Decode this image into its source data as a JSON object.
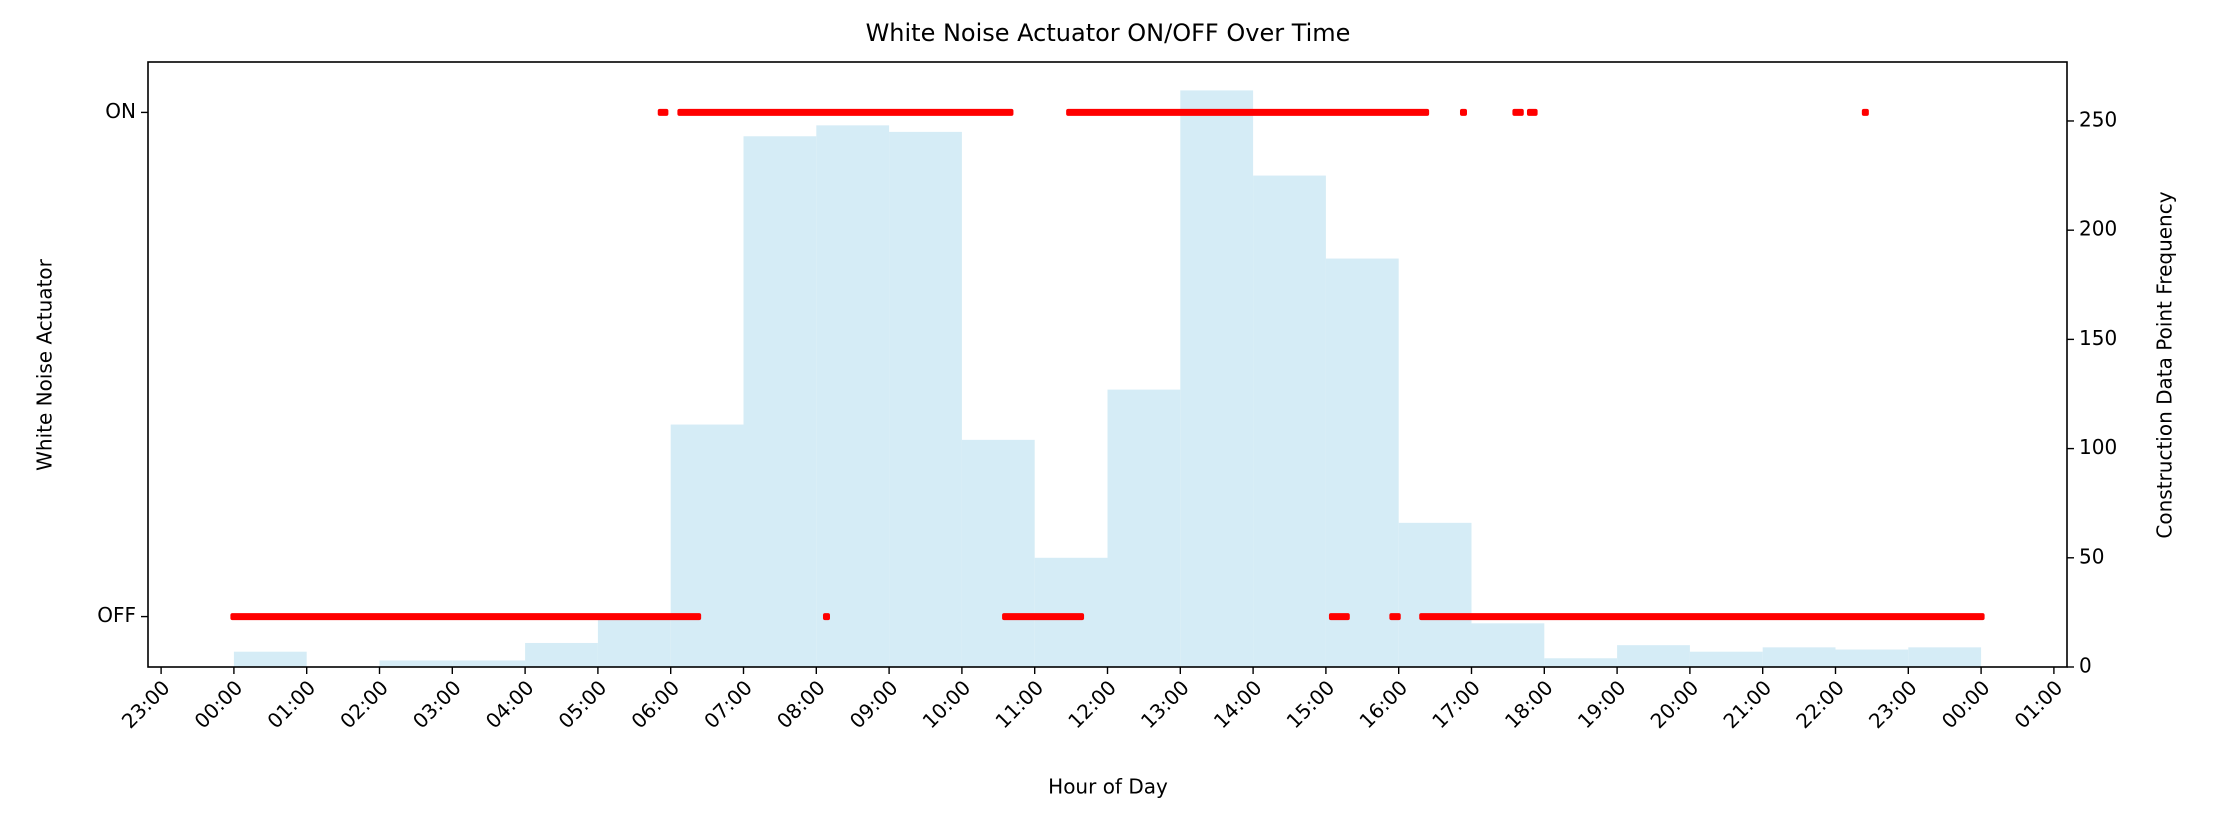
{
  "chart_data": [
    {
      "type": "histogram",
      "axis": "y2",
      "color": "#d5ecf6",
      "bins": [
        0,
        1,
        2,
        3,
        4,
        5,
        6,
        7,
        8,
        9,
        10,
        11,
        12,
        13,
        14,
        15,
        16,
        17,
        18,
        19,
        20,
        21,
        22,
        23,
        24
      ],
      "values": [
        7,
        0,
        3,
        3,
        11,
        24,
        111,
        243,
        248,
        245,
        104,
        50,
        127,
        264,
        225,
        187,
        66,
        20,
        4,
        10,
        7,
        9,
        8,
        9
      ],
      "y2lim": [
        0,
        277
      ],
      "y2ticks": [
        0,
        50,
        100,
        150,
        200,
        250
      ],
      "y2label": "Construction Data Point Frequency"
    },
    {
      "type": "runs",
      "color": "#ff0000",
      "title": "White Noise Actuator ON/OFF Over Time",
      "xlabel": "Hour of Day",
      "ylabel": "White Noise Actuator",
      "x": [
        5.87,
        6.14,
        11.48,
        16.89,
        17.61,
        17.81,
        22.41,
        0,
        8.14,
        10.6,
        15.09,
        15.92,
        16.33
      ],
      "x_end": [
        5.92,
        10.66,
        16.37,
        16.89,
        17.67,
        17.86,
        22.41,
        6.37,
        8.14,
        11.63,
        15.28,
        15.98,
        24
      ],
      "values": [
        1,
        1,
        1,
        1,
        1,
        1,
        1,
        0,
        0,
        0,
        0,
        0,
        0
      ],
      "xlim": [
        -1.18,
        25.18
      ],
      "ylim": [
        -0.1,
        1.1
      ],
      "xticks": [
        {
          "value": -1,
          "label": "23:00"
        },
        {
          "value": 0,
          "label": "00:00"
        },
        {
          "value": 1,
          "label": "01:00"
        },
        {
          "value": 2,
          "label": "02:00"
        },
        {
          "value": 3,
          "label": "03:00"
        },
        {
          "value": 4,
          "label": "04:00"
        },
        {
          "value": 5,
          "label": "05:00"
        },
        {
          "value": 6,
          "label": "06:00"
        },
        {
          "value": 7,
          "label": "07:00"
        },
        {
          "value": 8,
          "label": "08:00"
        },
        {
          "value": 9,
          "label": "09:00"
        },
        {
          "value": 10,
          "label": "10:00"
        },
        {
          "value": 11,
          "label": "11:00"
        },
        {
          "value": 12,
          "label": "12:00"
        },
        {
          "value": 13,
          "label": "13:00"
        },
        {
          "value": 14,
          "label": "14:00"
        },
        {
          "value": 15,
          "label": "15:00"
        },
        {
          "value": 16,
          "label": "16:00"
        },
        {
          "value": 17,
          "label": "17:00"
        },
        {
          "value": 18,
          "label": "18:00"
        },
        {
          "value": 19,
          "label": "19:00"
        },
        {
          "value": 20,
          "label": "20:00"
        },
        {
          "value": 21,
          "label": "21:00"
        },
        {
          "value": 22,
          "label": "22:00"
        },
        {
          "value": 23,
          "label": "23:00"
        },
        {
          "value": 24,
          "label": "00:00"
        },
        {
          "value": 25,
          "label": "01:00"
        }
      ],
      "yticks": [
        {
          "value": 0,
          "label": "OFF"
        },
        {
          "value": 1,
          "label": "ON"
        }
      ]
    }
  ]
}
